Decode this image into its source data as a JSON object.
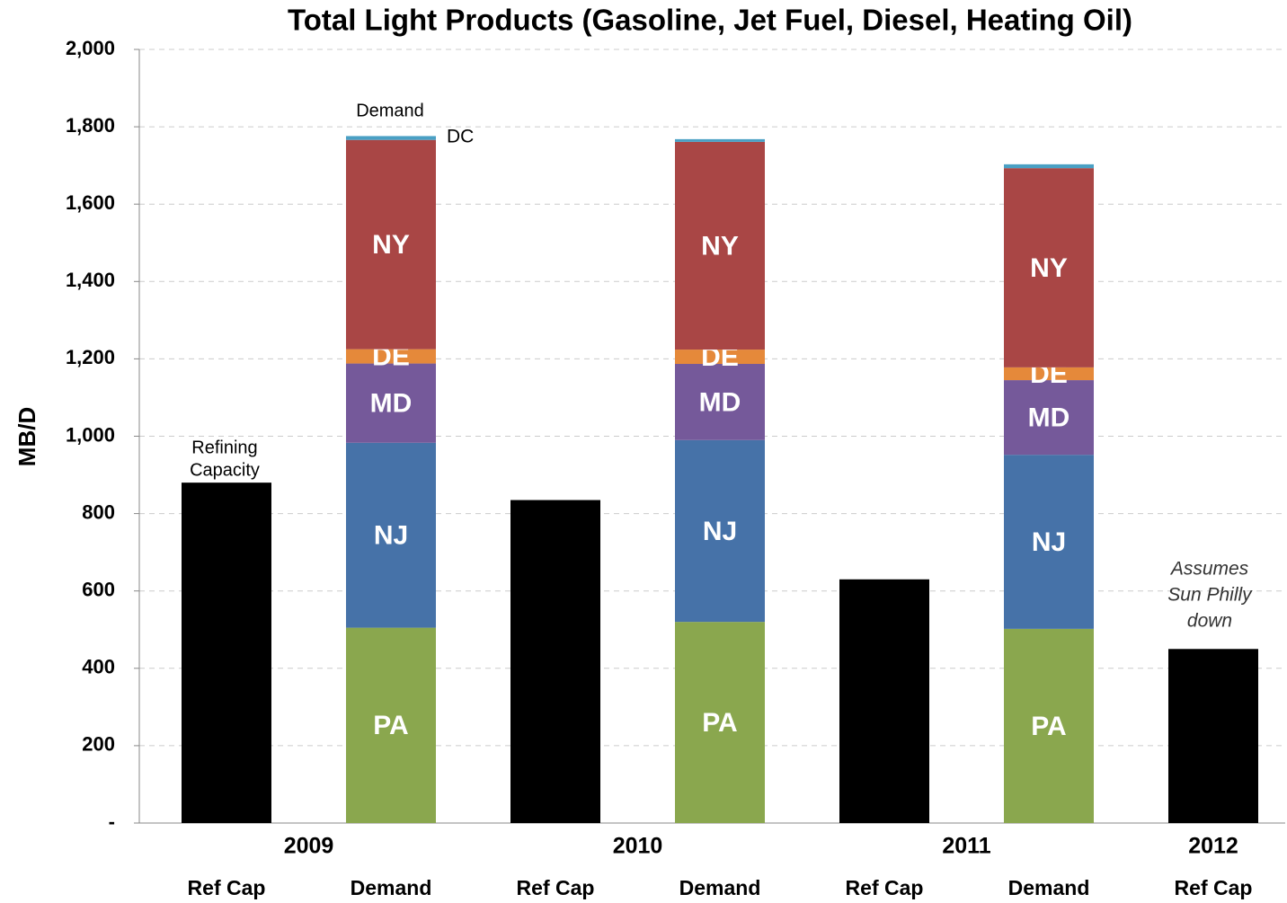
{
  "chart_data": {
    "type": "stacked_bar",
    "title": "Total Light Products (Gasoline, Jet Fuel, Diesel, Heating Oil)",
    "y_label": "MB/D",
    "categories": [
      "Ref Cap",
      "Demand",
      "Ref Cap",
      "Demand",
      "Ref Cap",
      "Demand",
      "Ref Cap"
    ],
    "x_groups": [
      "2009",
      "2010",
      "2011",
      "2012"
    ],
    "series": [
      {
        "color": "#000000",
        "values": [
          880,
          null,
          835,
          null,
          630,
          null,
          450
        ]
      },
      {
        "name": "PA",
        "color": "#8aa74e",
        "values": [
          null,
          505,
          null,
          520,
          null,
          502,
          null
        ]
      },
      {
        "name": "NJ",
        "color": "#4672a8",
        "values": [
          null,
          478,
          null,
          470,
          null,
          450,
          null
        ]
      },
      {
        "name": "MD",
        "color": "#75599a",
        "values": [
          null,
          205,
          null,
          197,
          null,
          193,
          null
        ]
      },
      {
        "name": "DE",
        "color": "#e5893a",
        "values": [
          null,
          37,
          null,
          37,
          null,
          33,
          null
        ]
      },
      {
        "name": "NY",
        "color": "#a94645",
        "values": [
          null,
          541,
          null,
          537,
          null,
          515,
          null
        ]
      },
      {
        "name": "DC",
        "color": "#4aa0c4",
        "values": [
          null,
          10,
          null,
          7,
          null,
          10,
          null
        ]
      }
    ],
    "annotations": {
      "demand": "Demand",
      "capacity": [
        "Refining",
        "Capacity"
      ],
      "assumes": [
        "Assumes",
        "Sun Philly",
        "down"
      ]
    },
    "ylim": [
      0,
      2000
    ],
    "yticks": [
      {
        "value": 0,
        "label": "-"
      },
      200,
      400,
      600,
      800,
      {
        "value": 1000,
        "label": "1,000"
      },
      {
        "value": 1200,
        "label": "1,200"
      },
      {
        "value": 1400,
        "label": "1,400"
      },
      {
        "value": 1600,
        "label": "1,600"
      },
      {
        "value": 1800,
        "label": "1,800"
      },
      {
        "value": 2000,
        "label": "2,000"
      }
    ],
    "grid": true
  }
}
